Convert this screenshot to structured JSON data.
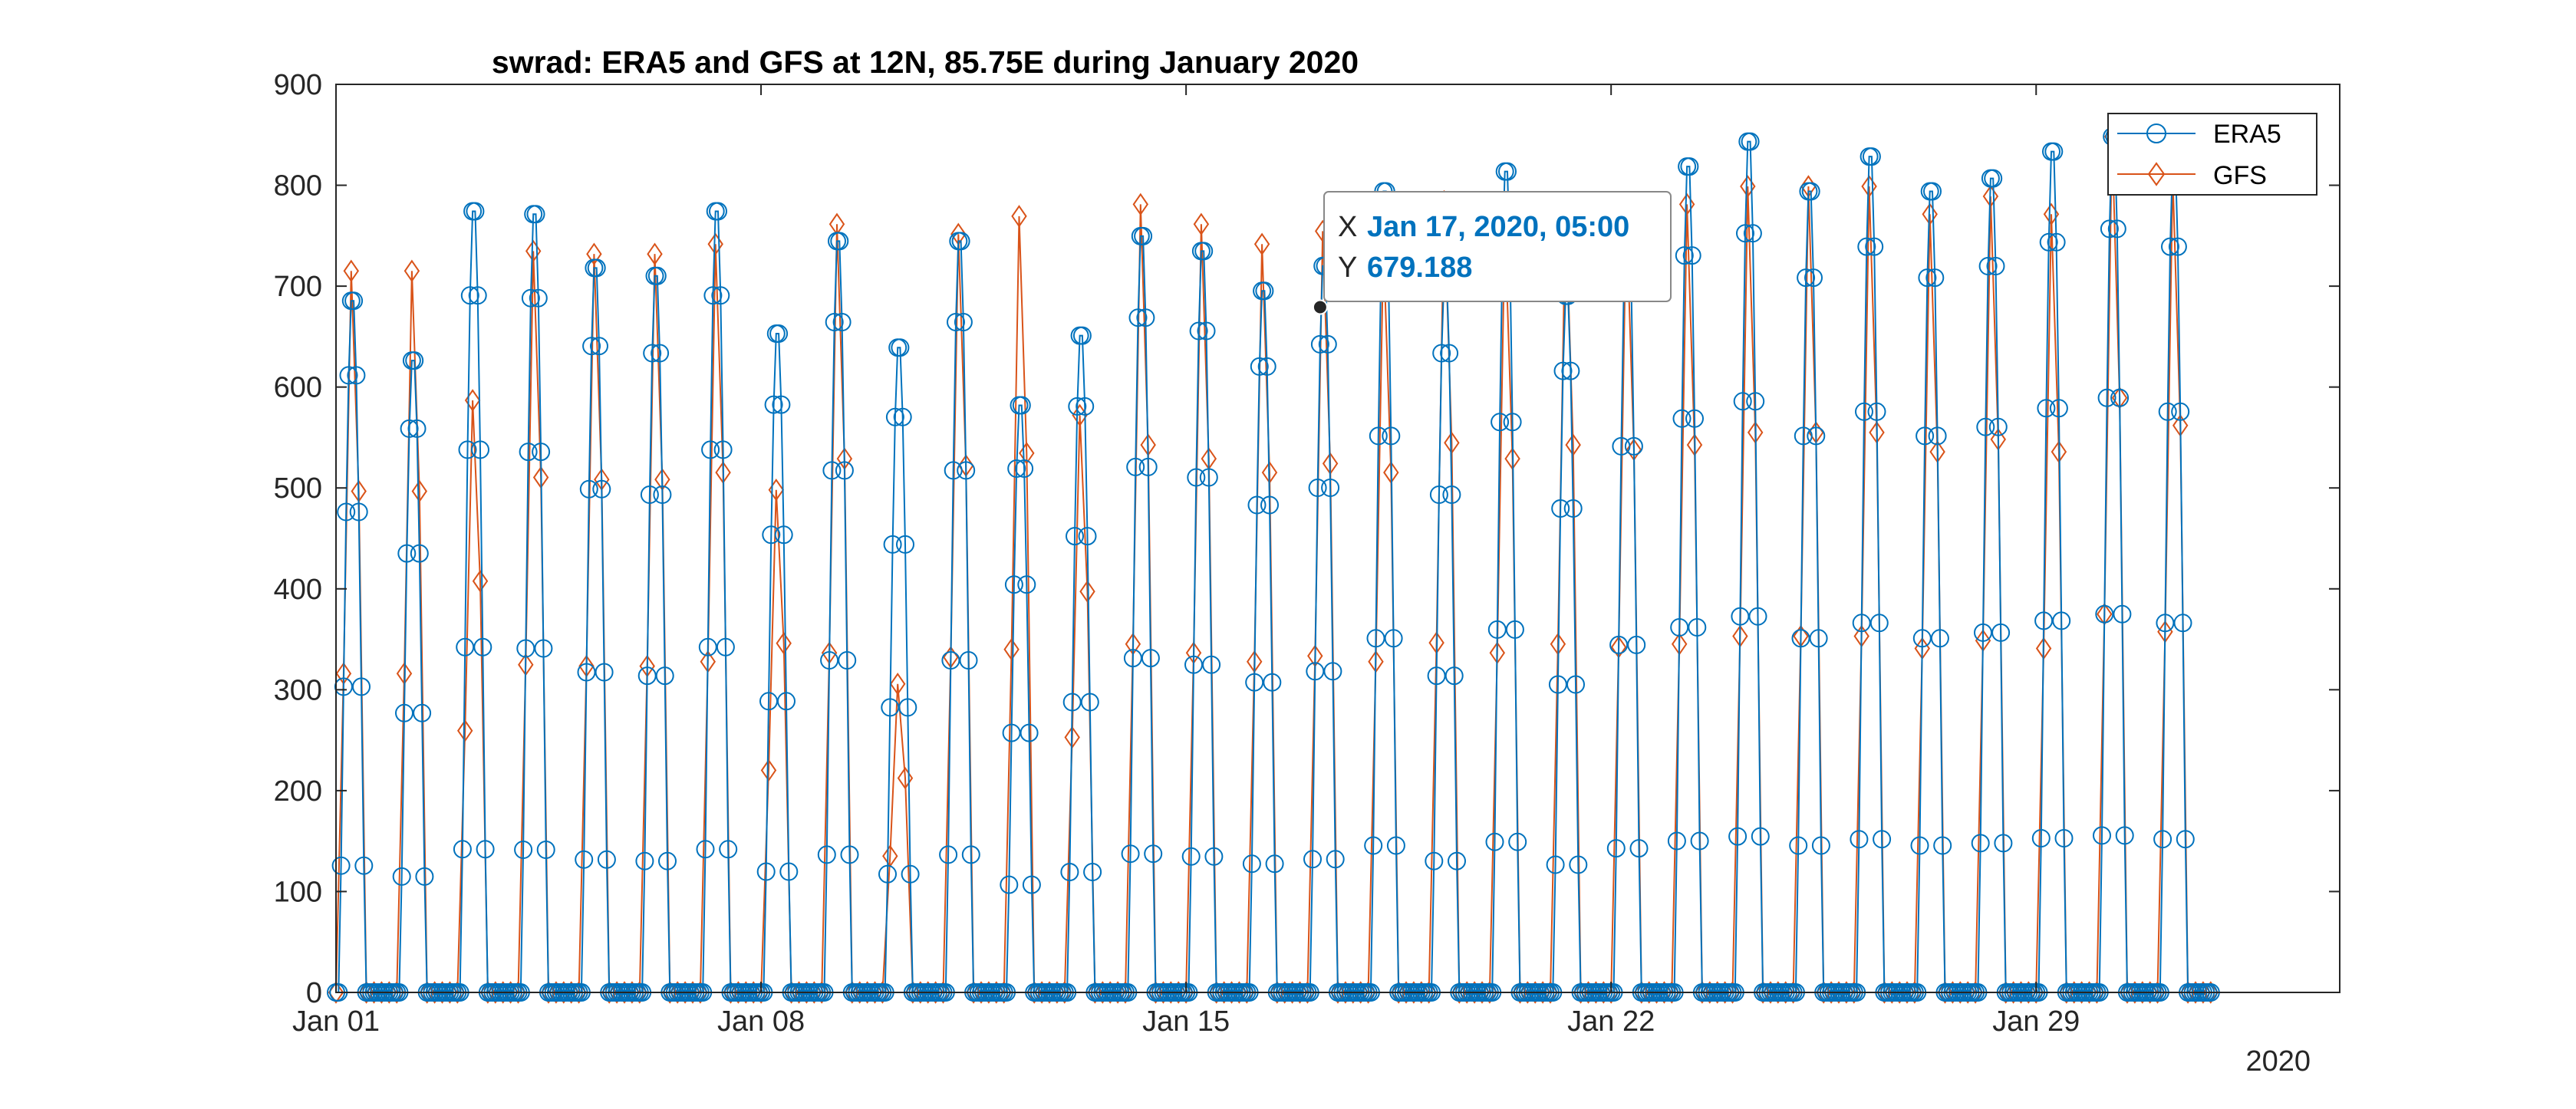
{
  "chart_data": {
    "type": "line",
    "title": "swrad: ERA5 and GFS at 12N, 85.75E during January 2020",
    "xlabel": "",
    "ylabel": "",
    "x_tick_labels": [
      "Jan 01",
      "Jan 08",
      "Jan 15",
      "Jan 22",
      "Jan 29"
    ],
    "x_tick_days": [
      0,
      7,
      14,
      21,
      28
    ],
    "x_secondary_label": "2020",
    "x_range_days": [
      0,
      33
    ],
    "ylim": [
      0,
      900
    ],
    "y_ticks": [
      0,
      100,
      200,
      300,
      400,
      500,
      600,
      700,
      800,
      900
    ],
    "grid": false,
    "legend_position": "top-right",
    "series": [
      {
        "name": "ERA5",
        "color": "#0072BD",
        "marker": "circle",
        "sampling": "hourly, daily peaks listed (values estimated from figure)",
        "daily_peaks": [
          695,
          635,
          785,
          782,
          728,
          720,
          785,
          662,
          755,
          648,
          755,
          590,
          660,
          760,
          745,
          705,
          730,
          805,
          720,
          825,
          700,
          790,
          830,
          855,
          805,
          840,
          805,
          818,
          845,
          860,
          840
        ]
      },
      {
        "name": "GFS",
        "color": "#D95319",
        "marker": "diamond",
        "sampling": "3-hourly, daily peaks listed (values estimated from figure)",
        "daily_peaks": [
          725,
          725,
          595,
          745,
          742,
          742,
          752,
          505,
          772,
          310,
          762,
          780,
          580,
          792,
          772,
          752,
          765,
          752,
          795,
          772,
          792,
          785,
          792,
          810,
          810,
          810,
          782,
          800,
          782,
          860,
          820
        ]
      }
    ]
  },
  "datatip": {
    "x_label": "X",
    "x_value": "Jan 17, 2020, 05:00",
    "y_label": "Y",
    "y_value": "679.188",
    "point_day": 16.208,
    "point_value": 679.188
  }
}
